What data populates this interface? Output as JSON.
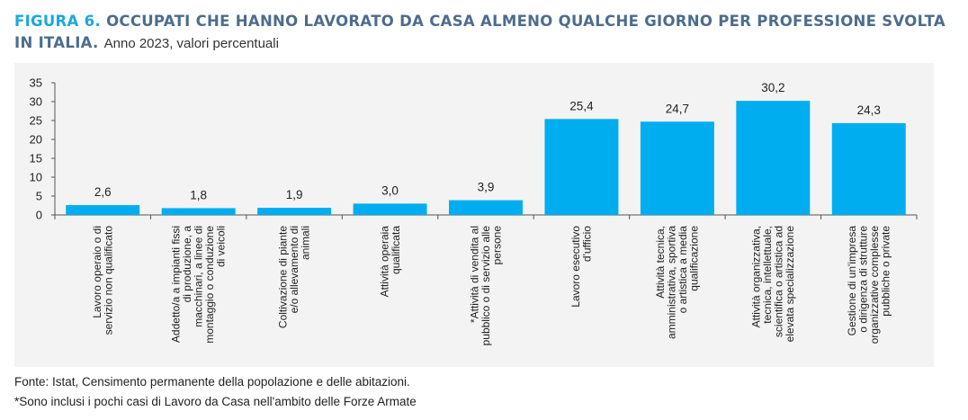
{
  "figure": {
    "label": "FIGURA 6.",
    "title_line1": "OCCUPATI CHE HANNO LAVORATO DA CASA ALMENO QUALCHE GIORNO PER PROFESSIONE SVOLTA",
    "title_line2": "IN ITALIA.",
    "subtitle": "Anno 2023, valori percentuali"
  },
  "colors": {
    "bar": "#00aeef",
    "axis": "#555555",
    "label_accent": "#1aa8df",
    "title": "#4c6d8d"
  },
  "chart_data": {
    "type": "bar",
    "title": "",
    "xlabel": "",
    "ylabel": "",
    "ylim": [
      0,
      35
    ],
    "yticks": [
      0,
      5,
      10,
      15,
      20,
      25,
      30,
      35
    ],
    "grid": false,
    "categories": [
      [
        "Lavoro operaio o di",
        "servizio non qualificato"
      ],
      [
        "Addetto/a a impianti fissi",
        "di produzione, a",
        "macchinari, a linee di",
        "montaggio o conduzione",
        "di veicoli"
      ],
      [
        "Coltivazione di piante",
        "e/o allevamento di",
        "animali"
      ],
      [
        "Attività operaia",
        "qualificata"
      ],
      [
        "*Attività di vendita al",
        "pubblico o di servizio alle",
        "persone"
      ],
      [
        "Lavoro esecutivo",
        "d'ufficio"
      ],
      [
        "Attività tecnica,",
        "amministrativa, sportiva",
        "o artistica a media",
        "qualificazione"
      ],
      [
        "Attività organizzativa,",
        "tecnica, intellettuale,",
        "scientifica o artistica ad",
        "elevata specializzazione"
      ],
      [
        "Gestione di un'impresa",
        "o dirigenza di strutture",
        "organizzative complesse",
        "pubbliche o private"
      ]
    ],
    "values": [
      2.6,
      1.8,
      1.9,
      3.0,
      3.9,
      25.4,
      24.7,
      30.2,
      24.3
    ],
    "value_labels": [
      "2,6",
      "1,8",
      "1,9",
      "3,0",
      "3,9",
      "25,4",
      "24,7",
      "30,2",
      "24,3"
    ]
  },
  "notes": {
    "source": "Fonte: Istat, Censimento permanente della popolazione e delle abitazioni.",
    "footnote": "*Sono inclusi i pochi casi di Lavoro da Casa nell'ambito delle Forze Armate"
  }
}
